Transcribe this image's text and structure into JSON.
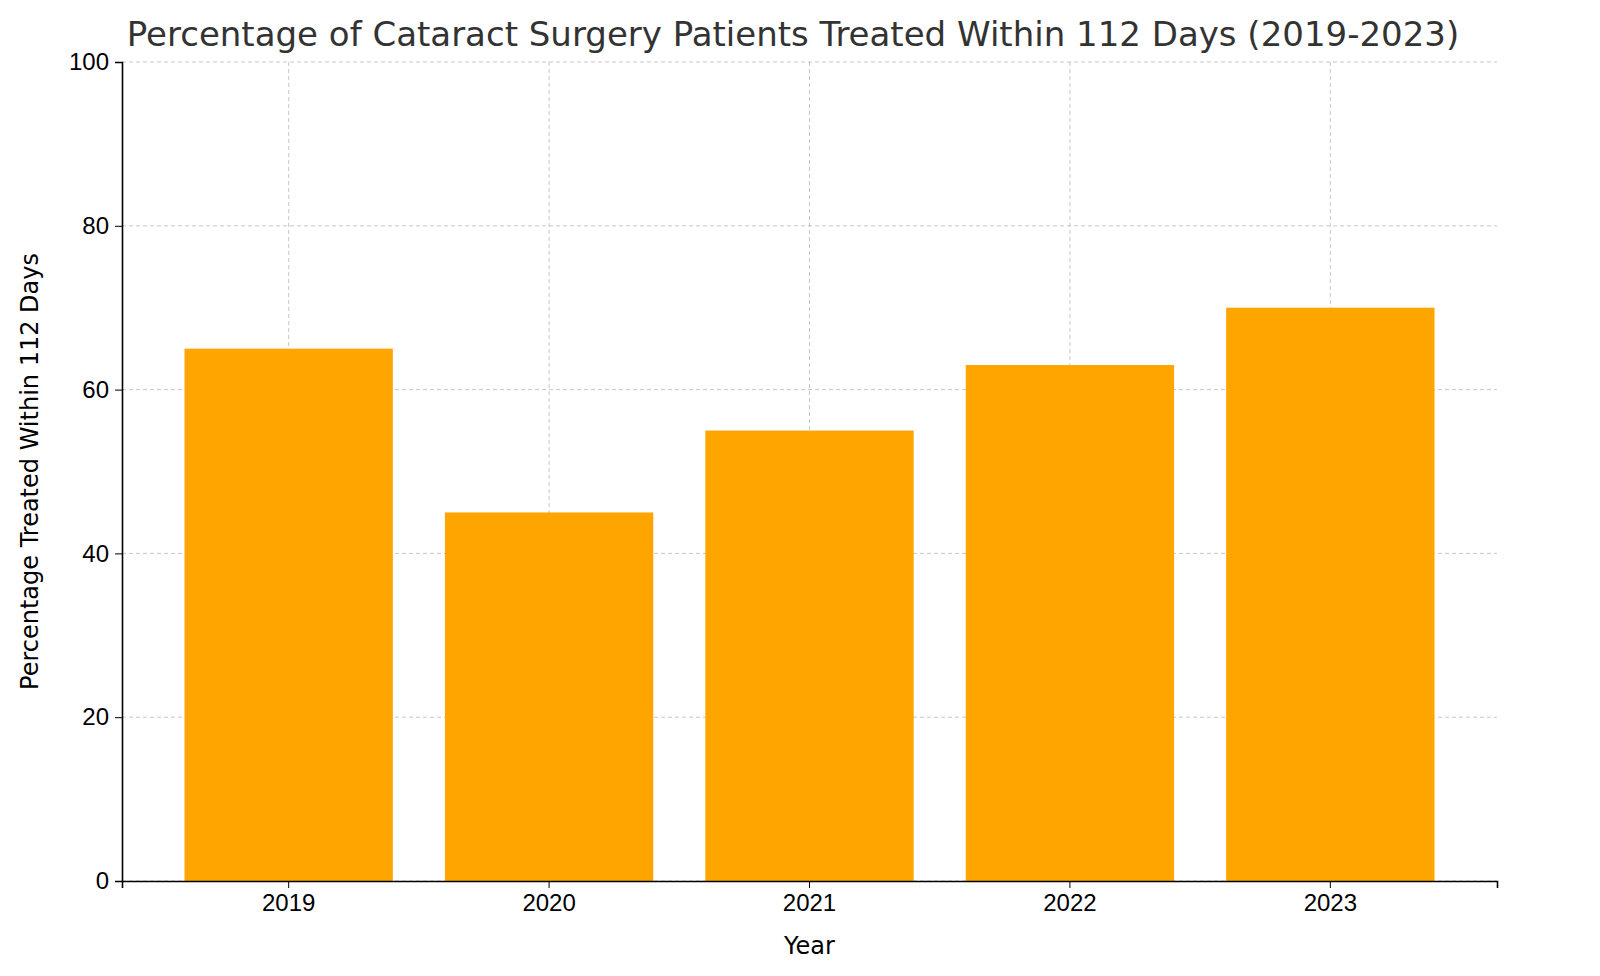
{
  "chart_data": {
    "type": "bar",
    "title": "Percentage of Cataract Surgery Patients Treated Within 112 Days (2019-2023)",
    "x_label": "Year",
    "y_label": "Percentage Treated Within 112 Days",
    "categories": [
      "2019",
      "2020",
      "2021",
      "2022",
      "2023"
    ],
    "values": [
      65,
      45,
      55,
      63,
      70
    ],
    "color": "#ffa500",
    "ylim": [
      0,
      100
    ],
    "yticks": [
      0,
      20,
      40,
      60,
      80,
      100
    ],
    "grid": true
  }
}
